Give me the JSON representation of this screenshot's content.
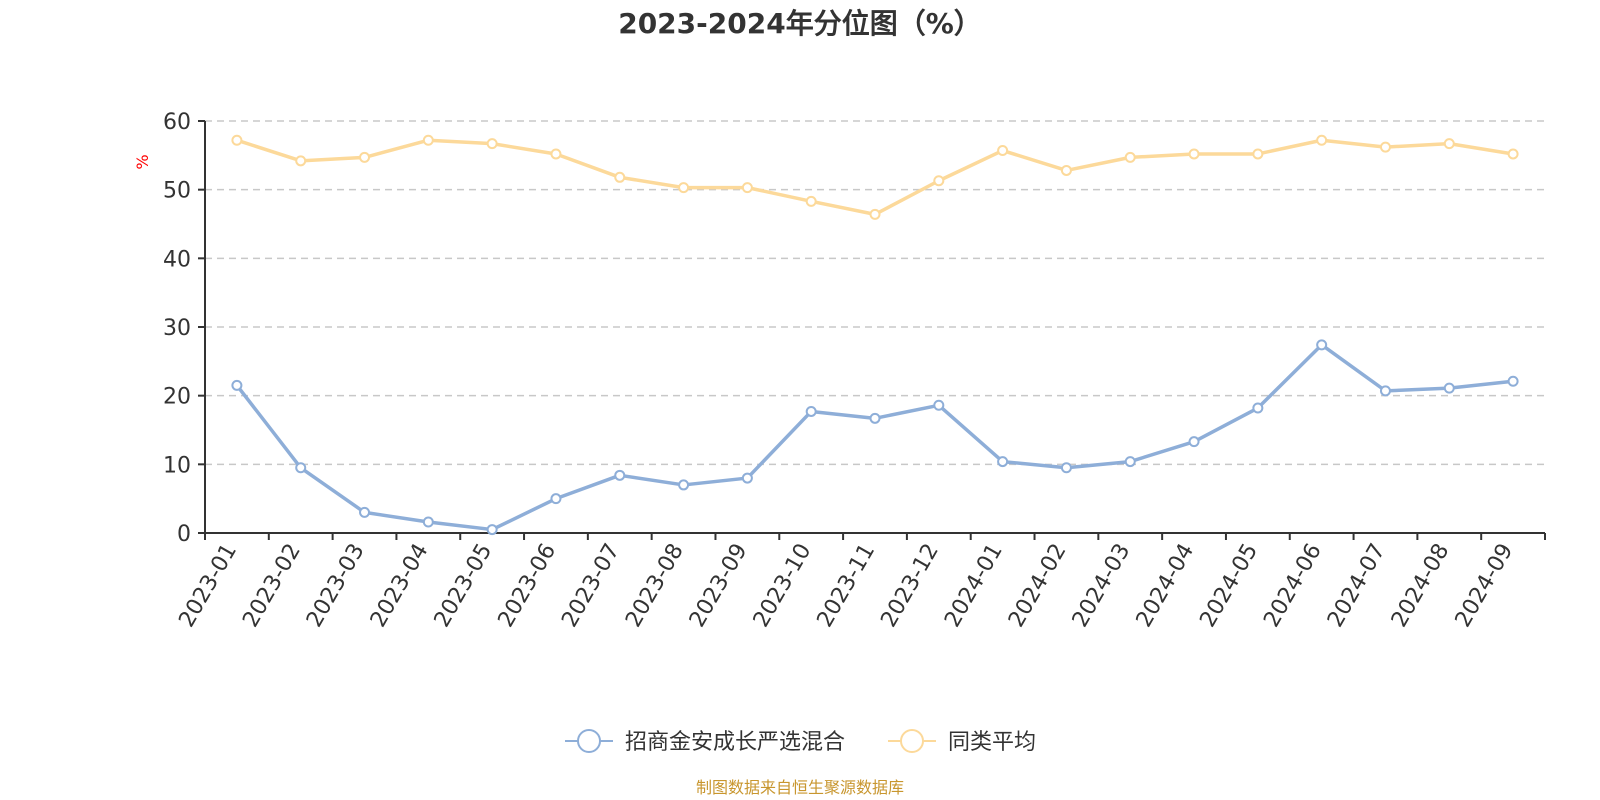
{
  "chart_data": {
    "type": "line",
    "title": "2023-2024年分位图（%）",
    "ylabel": "%",
    "xlabel": "",
    "ylim": [
      0,
      60
    ],
    "yticks": [
      0,
      10,
      20,
      30,
      40,
      50,
      60
    ],
    "grid": true,
    "legend_position": "bottom",
    "categories": [
      "2023-01",
      "2023-02",
      "2023-03",
      "2023-04",
      "2023-05",
      "2023-06",
      "2023-07",
      "2023-08",
      "2023-09",
      "2023-10",
      "2023-11",
      "2023-12",
      "2024-01",
      "2024-02",
      "2024-03",
      "2024-04",
      "2024-05",
      "2024-06",
      "2024-07",
      "2024-08",
      "2024-09"
    ],
    "series": [
      {
        "name": "招商金安成长严选混合",
        "color": "#8eaed8",
        "values": [
          21.5,
          9.5,
          3.0,
          1.6,
          0.5,
          5.0,
          8.4,
          7.0,
          8.0,
          17.7,
          16.7,
          18.6,
          10.4,
          9.5,
          10.4,
          13.3,
          18.2,
          27.4,
          20.7,
          21.1,
          22.1
        ]
      },
      {
        "name": "同类平均",
        "color": "#fcd99a",
        "values": [
          57.2,
          54.2,
          54.7,
          57.2,
          56.7,
          55.2,
          51.8,
          50.3,
          50.3,
          48.3,
          46.4,
          51.3,
          55.7,
          52.8,
          54.7,
          55.2,
          55.2,
          57.2,
          56.2,
          56.7,
          55.2
        ]
      }
    ],
    "source": "制图数据来自恒生聚源数据库"
  }
}
